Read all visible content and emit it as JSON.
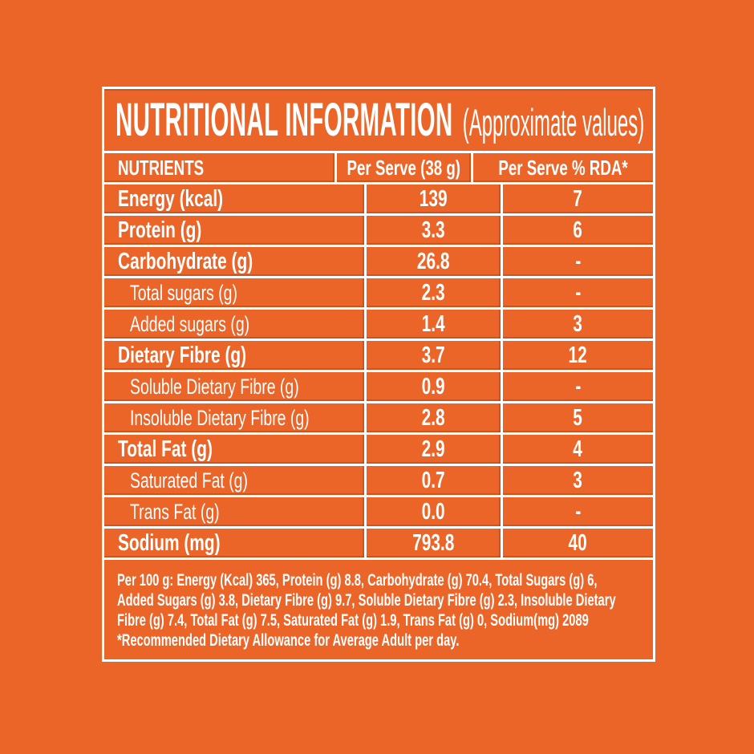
{
  "title": {
    "main": "NUTRITIONAL INFORMATION",
    "sub": "(Approximate values)"
  },
  "table": {
    "headers": [
      "NUTRIENTS",
      "Per Serve (38 g)",
      "Per Serve % RDA*"
    ],
    "rows": [
      {
        "label": "Energy (kcal)",
        "per_serve": "139",
        "rda": "7",
        "indent": false
      },
      {
        "label": "Protein (g)",
        "per_serve": "3.3",
        "rda": "6",
        "indent": false
      },
      {
        "label": "Carbohydrate (g)",
        "per_serve": "26.8",
        "rda": "-",
        "indent": false
      },
      {
        "label": "Total sugars (g)",
        "per_serve": "2.3",
        "rda": "-",
        "indent": true
      },
      {
        "label": "Added sugars (g)",
        "per_serve": "1.4",
        "rda": "3",
        "indent": true
      },
      {
        "label": "Dietary Fibre (g)",
        "per_serve": "3.7",
        "rda": "12",
        "indent": false
      },
      {
        "label": "Soluble Dietary Fibre (g)",
        "per_serve": "0.9",
        "rda": "-",
        "indent": true
      },
      {
        "label": "Insoluble Dietary Fibre (g)",
        "per_serve": "2.8",
        "rda": "5",
        "indent": true
      },
      {
        "label": "Total Fat (g)",
        "per_serve": "2.9",
        "rda": "4",
        "indent": false
      },
      {
        "label": "Saturated Fat (g)",
        "per_serve": "0.7",
        "rda": "3",
        "indent": true
      },
      {
        "label": "Trans Fat (g)",
        "per_serve": "0.0",
        "rda": "-",
        "indent": true
      },
      {
        "label": "Sodium (mg)",
        "per_serve": "793.8",
        "rda": "40",
        "indent": false
      }
    ]
  },
  "footer": {
    "lines": [
      "Per 100 g: Energy (Kcal) 365, Protein (g) 8.8, Carbohydrate (g) 70.4, Total Sugars (g) 6,",
      "Added Sugars (g) 3.8, Dietary Fibre (g) 9.7, Soluble Dietary Fibre (g) 2.3, Insoluble Dietary",
      "Fibre (g) 7.4, Total Fat (g) 7.5, Saturated Fat (g) 1.9, Trans Fat (g) 0, Sodium(mg) 2089",
      "*Recommended Dietary Allowance for Average Adult per day."
    ]
  },
  "colors": {
    "background": "#EB6428",
    "lines_and_text": "#FFFFFF",
    "rule_shadow": "#C9521C"
  }
}
